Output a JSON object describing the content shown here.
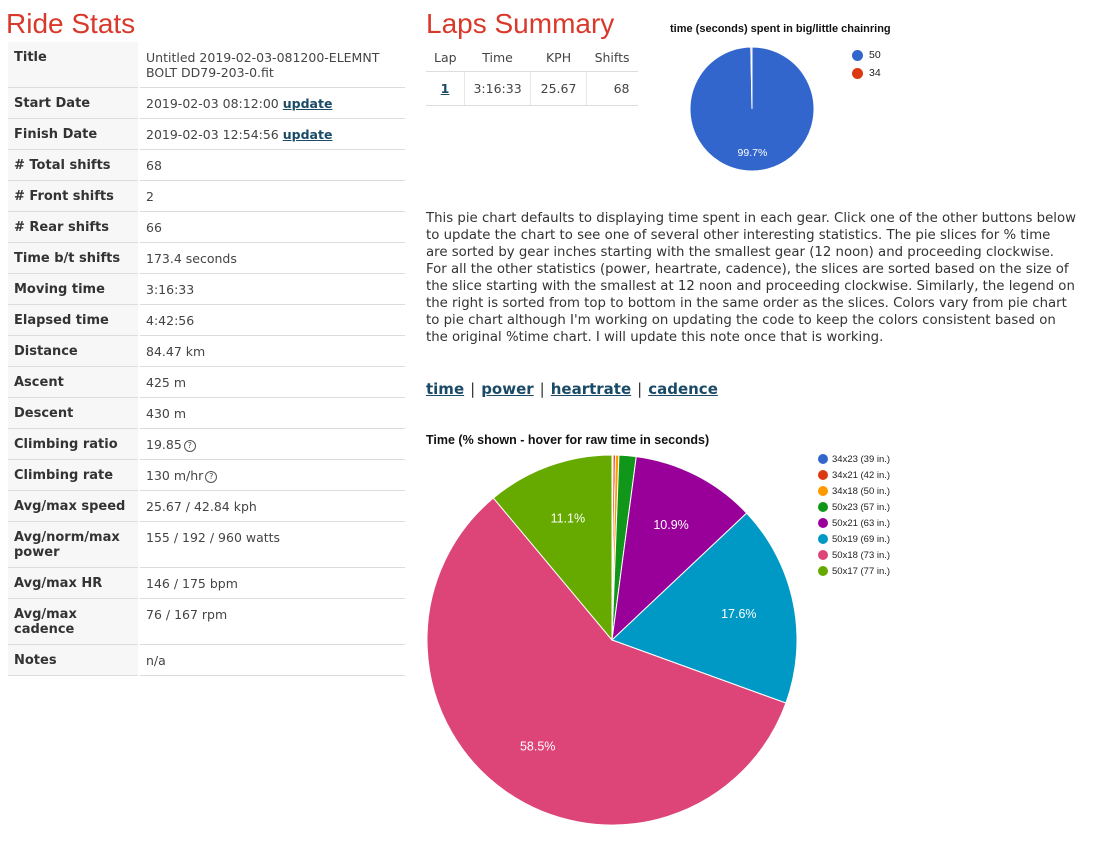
{
  "ride_stats": {
    "heading": "Ride Stats",
    "rows": [
      {
        "label": "Title",
        "value": "Untitled 2019-02-03-081200-ELEMNT BOLT DD79-203-0.fit",
        "link": ""
      },
      {
        "label": "Start Date",
        "value": "2019-02-03 08:12:00",
        "link": "update"
      },
      {
        "label": "Finish Date",
        "value": "2019-02-03 12:54:56",
        "link": "update"
      },
      {
        "label": "# Total shifts",
        "value": "68",
        "link": ""
      },
      {
        "label": "# Front shifts",
        "value": "2",
        "link": ""
      },
      {
        "label": "# Rear shifts",
        "value": "66",
        "link": ""
      },
      {
        "label": "Time b/t shifts",
        "value": "173.4 seconds",
        "link": ""
      },
      {
        "label": "Moving time",
        "value": "3:16:33",
        "link": ""
      },
      {
        "label": "Elapsed time",
        "value": "4:42:56",
        "link": ""
      },
      {
        "label": "Distance",
        "value": "84.47 km",
        "link": ""
      },
      {
        "label": "Ascent",
        "value": "425 m",
        "link": ""
      },
      {
        "label": "Descent",
        "value": "430 m",
        "link": ""
      },
      {
        "label": "Climbing ratio",
        "value": "19.85",
        "link": "",
        "help": "?"
      },
      {
        "label": "Climbing rate",
        "value": "130 m/hr",
        "link": "",
        "help": "?"
      },
      {
        "label": "Avg/max speed",
        "value": "25.67 / 42.84 kph",
        "link": ""
      },
      {
        "label": "Avg/norm/max power",
        "value": "155 / 192 / 960 watts",
        "link": ""
      },
      {
        "label": "Avg/max HR",
        "value": "146 / 175 bpm",
        "link": ""
      },
      {
        "label": "Avg/max cadence",
        "value": "76 / 167 rpm",
        "link": ""
      },
      {
        "label": "Notes",
        "value": "n/a",
        "link": ""
      }
    ]
  },
  "laps": {
    "heading": "Laps Summary",
    "columns": [
      "Lap",
      "Time",
      "KPH",
      "Shifts"
    ],
    "rows": [
      {
        "lap": "1",
        "time": "3:16:33",
        "kph": "25.67",
        "shifts": "68"
      }
    ]
  },
  "description": "This pie chart defaults to displaying time spent in each gear. Click one of the other buttons below to update the chart to see one of several other interesting statistics. The pie slices for % time are sorted by gear inches starting with the smallest gear (12 noon) and proceeding clockwise. For all the other statistics (power, heartrate, cadence), the slices are sorted based on the size of the slice starting with the smallest at 12 noon and proceeding clockwise. Similarly, the legend on the right is sorted from top to bottom in the same order as the slices. Colors vary from pie chart to pie chart although I'm working on updating the code to keep the colors consistent based on the original %time chart. I will update this note once that is working.",
  "stat_links": {
    "time": "time",
    "power": "power",
    "heartrate": "heartrate",
    "cadence": "cadence",
    "separator": "|"
  },
  "chart_data": [
    {
      "type": "pie",
      "title": "time (seconds) spent in big/little chainring",
      "categories": [
        "50",
        "34"
      ],
      "values": [
        99.7,
        0.3
      ],
      "colors": [
        "#3366cc",
        "#dc3912"
      ],
      "slice_labels": [
        "99.7%",
        ""
      ],
      "legend_position": "right"
    },
    {
      "type": "pie",
      "title": "Time (% shown - hover for raw time in seconds)",
      "categories": [
        "34x23 (39 in.)",
        "34x21 (42 in.)",
        "34x18 (50 in.)",
        "50x23 (57 in.)",
        "50x21 (63 in.)",
        "50x19 (69 in.)",
        "50x18 (73 in.)",
        "50x17 (77 in.)"
      ],
      "values": [
        0.1,
        0.2,
        0.3,
        1.5,
        10.9,
        17.6,
        58.5,
        11.1
      ],
      "colors": [
        "#3366cc",
        "#dc3912",
        "#ff9900",
        "#109618",
        "#990099",
        "#0099c6",
        "#dd4477",
        "#66aa00"
      ],
      "slice_labels": [
        "",
        "",
        "",
        "",
        "10.9%",
        "17.6%",
        "58.5%",
        "11.1%"
      ],
      "legend_position": "right"
    }
  ]
}
